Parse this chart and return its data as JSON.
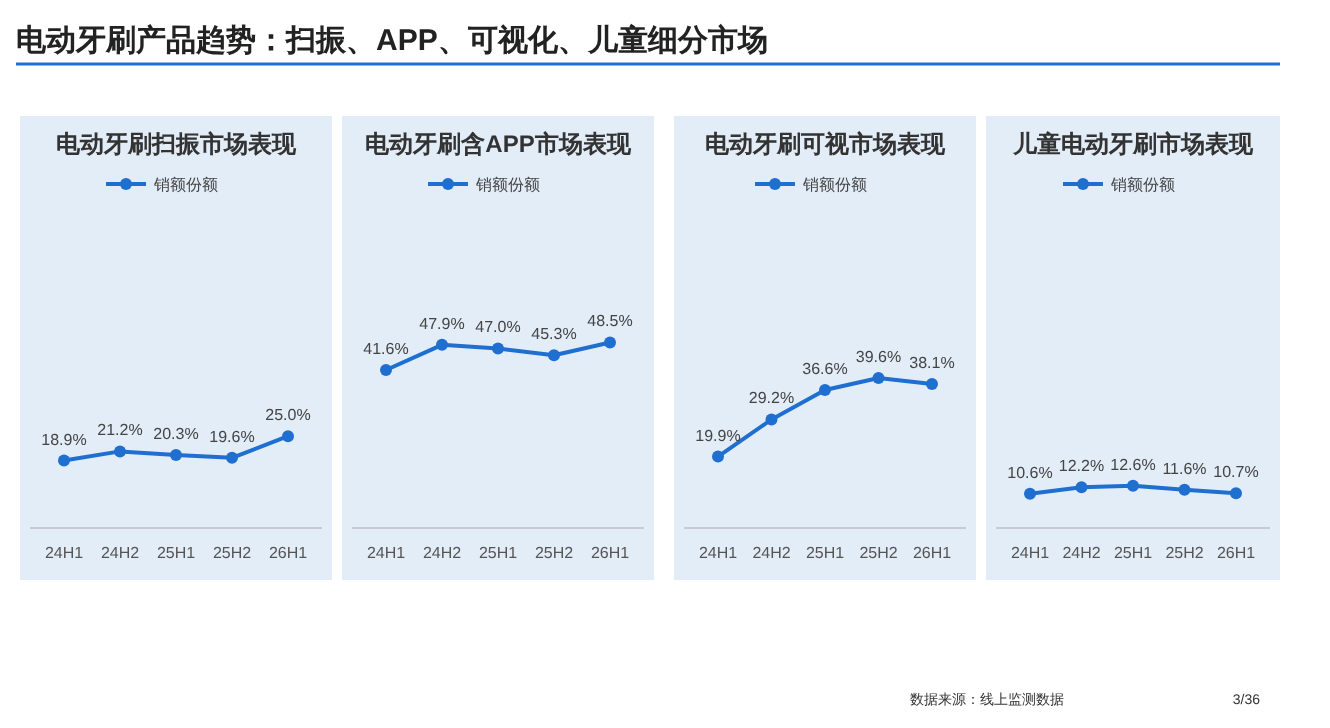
{
  "chart_data": [
    {
      "type": "other",
      "title": "电动牙刷产品趋势：扫振、APP、可视化、儿童细分市场",
      "annotations": [
        "数据来源：线上监测数据",
        "3/36"
      ]
    },
    {
      "type": "line",
      "title": "电动牙刷扫振市场表现",
      "categories": [
        "24H1",
        "24H2",
        "25H1",
        "25H2",
        "26H1"
      ],
      "series": [
        {
          "name": "销额份额",
          "color": "#1f6fd0",
          "values": [
            18.9,
            21.2,
            20.3,
            19.6,
            25.0
          ],
          "value_labels": [
            "18.9%",
            "21.2%",
            "20.3%",
            "19.6%",
            "25.0%"
          ]
        }
      ],
      "tick_labels": "x",
      "marker": "circle",
      "legend": "top"
    },
    {
      "type": "line",
      "title": "电动牙刷含APP市场表现",
      "categories": [
        "24H1",
        "24H2",
        "25H1",
        "25H2",
        "26H1"
      ],
      "series": [
        {
          "name": "销额份额",
          "color": "#1f6fd0",
          "values": [
            41.6,
            47.9,
            47.0,
            45.3,
            48.5
          ],
          "value_labels": [
            "41.6%",
            "47.9%",
            "47.0%",
            "45.3%",
            "48.5%"
          ]
        }
      ],
      "tick_labels": "x",
      "marker": "circle",
      "legend": "top"
    },
    {
      "type": "line",
      "title": "电动牙刷可视市场表现",
      "categories": [
        "24H1",
        "24H2",
        "25H1",
        "25H2",
        "26H1"
      ],
      "series": [
        {
          "name": "销额份额",
          "color": "#1f6fd0",
          "values": [
            19.9,
            29.2,
            36.6,
            39.6,
            38.1
          ],
          "value_labels": [
            "19.9%",
            "29.2%",
            "36.6%",
            "39.6%",
            "38.1%"
          ]
        }
      ],
      "tick_labels": "x",
      "marker": "circle",
      "legend": "top"
    },
    {
      "type": "line",
      "title": "儿童电动牙刷市场表现",
      "categories": [
        "24H1",
        "24H2",
        "25H1",
        "25H2",
        "26H1"
      ],
      "series": [
        {
          "name": "销额份额",
          "color": "#1f6fd0",
          "values": [
            10.6,
            12.2,
            12.6,
            11.6,
            10.7
          ],
          "value_labels": [
            "10.6%",
            "12.2%",
            "12.6%",
            "11.6%",
            "10.7%"
          ]
        }
      ],
      "tick_labels": "x",
      "marker": "circle",
      "legend": "top"
    }
  ]
}
